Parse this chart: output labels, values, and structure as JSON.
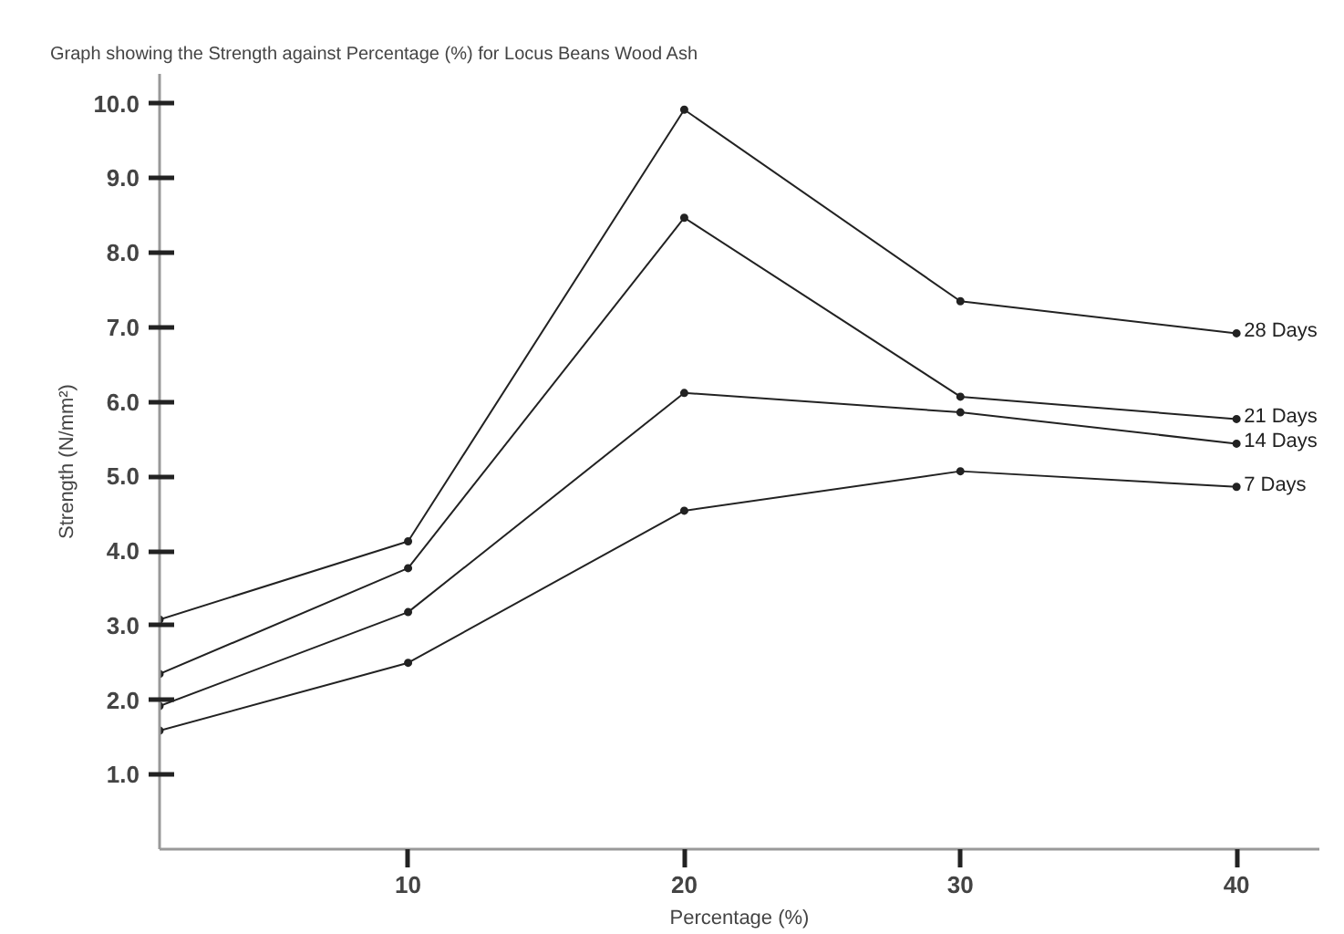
{
  "chart_data": {
    "type": "line",
    "title": "Graph showing the Strength against Percentage (%) for Locus Beans Wood Ash",
    "xlabel": "Percentage (%)",
    "ylabel": "Strength (N/mm²)",
    "x": [
      1,
      10,
      20,
      30,
      40
    ],
    "series": [
      {
        "name": "28 Days",
        "color": "#222222",
        "values": [
          3.08,
          4.13,
          9.92,
          7.35,
          6.92
        ]
      },
      {
        "name": "21 Days",
        "color": "#222222",
        "values": [
          2.35,
          3.77,
          8.47,
          6.07,
          5.77
        ]
      },
      {
        "name": "14 Days",
        "color": "#222222",
        "values": [
          1.92,
          3.18,
          6.12,
          5.86,
          5.44
        ]
      },
      {
        "name": "7 Days",
        "color": "#222222",
        "values": [
          1.59,
          2.5,
          4.54,
          5.07,
          4.86
        ]
      }
    ],
    "xlim": [
      1,
      43
    ],
    "xticks": [
      10,
      20,
      30,
      40
    ],
    "ylim": [
      0,
      10.4
    ],
    "yticks": [
      {
        "value": 1,
        "label": "1.0"
      },
      {
        "value": 2,
        "label": "2.0"
      },
      {
        "value": 3,
        "label": "3.0"
      },
      {
        "value": 4,
        "label": "4.0"
      },
      {
        "value": 5,
        "label": "5.0"
      },
      {
        "value": 6,
        "label": "6.0"
      },
      {
        "value": 7,
        "label": "7.0"
      },
      {
        "value": 8,
        "label": "8.0"
      },
      {
        "value": 9,
        "label": "9.0"
      },
      {
        "value": 10,
        "label": "10.0"
      }
    ],
    "grid": false,
    "marker": "circle",
    "line_style": "solid"
  }
}
